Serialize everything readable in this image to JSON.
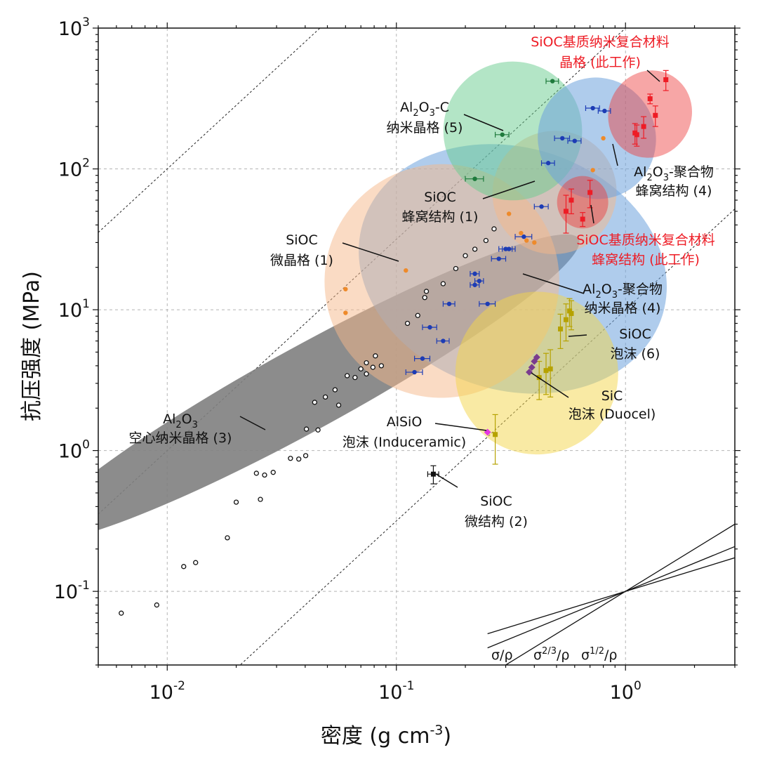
{
  "chart_data": {
    "type": "scatter",
    "xscale": "log",
    "yscale": "log",
    "xlabel": "密度 (g cm",
    "xlabel_sup": "-3",
    "xlabel_tail": ")",
    "ylabel": "抗压强度 (MPa)",
    "xlim": [
      0.005,
      3.0
    ],
    "ylim": [
      0.03,
      1000
    ],
    "grid": true,
    "x_ticks": [
      {
        "value": 0.01,
        "base": "10",
        "exp": "-2"
      },
      {
        "value": 0.1,
        "base": "10",
        "exp": "-1"
      },
      {
        "value": 1,
        "base": "10",
        "exp": "0"
      }
    ],
    "y_ticks": [
      {
        "value": 0.1,
        "base": "10",
        "exp": "-1"
      },
      {
        "value": 1,
        "base": "10",
        "exp": "0"
      },
      {
        "value": 10,
        "base": "10",
        "exp": "1"
      },
      {
        "value": 100,
        "base": "10",
        "exp": "2"
      },
      {
        "value": 1000,
        "base": "10",
        "exp": "3"
      }
    ],
    "guide_lines": [
      {
        "label": "σ/ρ",
        "exponent": 1
      },
      {
        "label_base": "σ",
        "label_sup": "2/3",
        "label_tail": "/ρ",
        "exponent": 0.6667
      },
      {
        "label_base": "σ",
        "label_sup": "1/2",
        "label_tail": "/ρ",
        "exponent": 0.5
      }
    ],
    "dashed_lines": {
      "slope": 1.5,
      "intercepts": [
        10,
        1000,
        100000,
        10000000,
        1000000000
      ]
    },
    "series": [
      {
        "name": "Al2O3 空心纳米晶格 (3)",
        "color": "#111111",
        "marker": "open-circle",
        "x": [
          0.0063,
          0.009,
          0.0118,
          0.0133,
          0.0183,
          0.02,
          0.0255,
          0.0245,
          0.0266,
          0.029,
          0.0345,
          0.0375,
          0.0402,
          0.0405,
          0.044,
          0.0455,
          0.049,
          0.054,
          0.056,
          0.061,
          0.066,
          0.07,
          0.074,
          0.074,
          0.079,
          0.081,
          0.086,
          0.1118,
          0.124,
          0.133,
          0.1352,
          0.16,
          0.1817,
          0.2,
          0.2201,
          0.246,
          0.2669
        ],
        "y": [
          0.07,
          0.08,
          0.15,
          0.16,
          0.24,
          0.43,
          0.45,
          0.69,
          0.67,
          0.7,
          0.88,
          0.87,
          0.92,
          1.42,
          2.2,
          1.4,
          2.4,
          2.7,
          2.1,
          3.4,
          3.3,
          3.8,
          3.5,
          4.2,
          3.9,
          4.7,
          4.0,
          8.0,
          9.1,
          12.2,
          13.5,
          15.3,
          19.6,
          24.2,
          26.9,
          31.0,
          37.5
        ]
      },
      {
        "name": "Al2O3-聚合物纳米晶格 (4)",
        "color": "#1d3cb5",
        "marker": "filled-circle",
        "x": [
          0.12,
          0.13,
          0.14,
          0.16,
          0.17,
          0.22,
          0.22,
          0.23,
          0.25,
          0.28,
          0.3,
          0.31,
          0.36,
          0.43,
          0.46,
          0.53,
          0.6,
          0.72,
          0.81
        ],
        "y": [
          3.6,
          4.5,
          7.5,
          6.0,
          11.0,
          15.0,
          18.0,
          16.0,
          11.0,
          23.0,
          27.0,
          27.0,
          33.0,
          54.0,
          110.0,
          165.0,
          158.0,
          270.0,
          258.0
        ],
        "xerr": [
          0.01,
          0.01,
          0.01,
          0.01,
          0.01,
          0.01,
          0.01,
          0.01,
          0.02,
          0.02,
          0.02,
          0.02,
          0.03,
          0.03,
          0.03,
          0.04,
          0.04,
          0.05,
          0.05
        ]
      },
      {
        "name": "SiOC 微晶格 (1)",
        "color": "#ee8a2a",
        "marker": "filled-circle",
        "x": [
          0.06,
          0.06,
          0.11,
          0.31,
          0.35,
          0.37,
          0.4,
          0.72,
          0.8
        ],
        "y": [
          14.0,
          9.5,
          19.0,
          48.0,
          35.0,
          31.0,
          30.0,
          98.0,
          165.0
        ]
      },
      {
        "name": "Al2O3-C 纳米晶格 (5)",
        "color": "#1e7a3c",
        "marker": "filled-circle",
        "x": [
          0.22,
          0.29,
          0.48
        ],
        "y": [
          85.0,
          175.0,
          420.0
        ],
        "xerr": [
          0.02,
          0.02,
          0.03
        ]
      },
      {
        "name": "SiOC基质纳米复合材料",
        "color": "#ee1c25",
        "marker": "filled-square",
        "x": [
          0.55,
          0.58,
          0.65,
          0.7,
          1.1,
          1.12,
          1.2,
          1.28,
          1.35,
          1.5
        ],
        "y": [
          50.0,
          60.0,
          44.0,
          68.0,
          180.0,
          175.0,
          200.0,
          315.0,
          240.0,
          430.0
        ],
        "yerr": [
          15.0,
          12.0,
          5.0,
          15.0,
          30.0,
          30.0,
          35.0,
          25.0,
          40.0,
          70.0
        ]
      },
      {
        "name": "SiOC 泡沫 (6)",
        "color": "#b6a200",
        "marker": "filled-square",
        "x": [
          0.27,
          0.42,
          0.45,
          0.47,
          0.52,
          0.55,
          0.57,
          0.58
        ],
        "y": [
          1.3,
          3.3,
          3.7,
          3.8,
          7.3,
          8.5,
          9.8,
          9.4
        ],
        "yerr": [
          0.5,
          1.0,
          1.2,
          1.4,
          2.0,
          2.5,
          2.2,
          2.2
        ]
      },
      {
        "name": "SiC 泡沫 (Duocel)",
        "color": "#7a3c8e",
        "marker": "filled-diamond",
        "x": [
          0.38,
          0.39,
          0.4,
          0.41
        ],
        "y": [
          3.6,
          3.9,
          4.3,
          4.6
        ]
      },
      {
        "name": "AlSiO 泡沫 (Induceramic)",
        "color": "#e33ae0",
        "marker": "filled-diamond",
        "x": [
          0.25
        ],
        "y": [
          1.35
        ]
      },
      {
        "name": "SiOC 微结构 (2)",
        "color": "#111111",
        "marker": "filled-square",
        "x": [
          0.145
        ],
        "y": [
          0.68
        ],
        "yerr": [
          0.1
        ],
        "xerr": [
          0.008
        ]
      }
    ],
    "ellipses": [
      {
        "name": "gray",
        "color": "#7f7f7f",
        "opacity": 0.9,
        "c": [
          0.041,
          2.8
        ],
        "u": [
          0.00565,
          0.057
        ],
        "v": [
          0.0335,
          5.1
        ]
      },
      {
        "name": "blue",
        "color": "#6ea3dc",
        "opacity": 0.55,
        "c": [
          0.322,
          19.5
        ],
        "u": [
          0.1,
          3.5
        ],
        "v": [
          0.46,
          130
        ]
      },
      {
        "name": "orange-micro",
        "color": "#f5b889",
        "opacity": 0.5,
        "c": [
          0.158,
          16.0
        ],
        "u": [
          0.053,
          8.0
        ],
        "v": [
          0.475,
          32.0
        ]
      },
      {
        "name": "orange-honey",
        "color": "#f5b889",
        "opacity": 0.5,
        "c": [
          0.49,
          68.0
        ],
        "u": [
          0.29,
          40.0
        ],
        "v": [
          0.83,
          118.0
        ]
      },
      {
        "name": "green",
        "color": "#67cc8e",
        "opacity": 0.5,
        "c": [
          0.322,
          186.0
        ],
        "u": [
          0.212,
          75.0
        ],
        "v": [
          0.49,
          460.0
        ]
      },
      {
        "name": "yellow",
        "color": "#f3d54a",
        "opacity": 0.5,
        "c": [
          0.41,
          3.55
        ],
        "u": [
          0.265,
          1.15
        ],
        "v": [
          0.63,
          11.0
        ]
      },
      {
        "name": "blue-honey",
        "color": "#6ea3dc",
        "opacity": 0.55,
        "c": [
          0.75,
          165.0
        ],
        "u": [
          0.42,
          120.0
        ],
        "v": [
          1.32,
          220.0
        ]
      },
      {
        "name": "red-lattice",
        "color": "#ee3a3a",
        "opacity": 0.45,
        "c": [
          1.28,
          245.0
        ],
        "u": [
          1.05,
          135.0
        ],
        "v": [
          1.55,
          470.0
        ]
      },
      {
        "name": "red-honey",
        "color": "#ee3a3a",
        "opacity": 0.45,
        "c": [
          0.65,
          58.0
        ],
        "u": [
          0.5,
          56.0
        ],
        "v": [
          0.84,
          60.0
        ]
      }
    ],
    "annotations": [
      {
        "lines": [
          "SiOC基质纳米复合材料",
          "晶格 (此工作)"
        ],
        "color": "red"
      },
      {
        "lines": [
          "Al2O3-C",
          "纳米晶格 (5)"
        ],
        "color": "black"
      },
      {
        "lines": [
          "Al2O3-聚合物",
          "蜂窝结构 (4)"
        ],
        "color": "black"
      },
      {
        "lines": [
          "SiOC",
          "蜂窝结构 (1)"
        ],
        "color": "black"
      },
      {
        "lines": [
          "SiOC",
          "微晶格 (1)"
        ],
        "color": "black"
      },
      {
        "lines": [
          "SiOC基质纳米复合材料",
          "蜂窝结构 (此工作)"
        ],
        "color": "red"
      },
      {
        "lines": [
          "Al2O3-聚合物",
          "纳米晶格 (4)"
        ],
        "color": "black"
      },
      {
        "lines": [
          "SiOC",
          "泡沫 (6)"
        ],
        "color": "black"
      },
      {
        "lines": [
          "SiC",
          "泡沫 (Duocel)"
        ],
        "color": "black"
      },
      {
        "lines": [
          "AlSiO",
          "泡沫 (Induceramic)"
        ],
        "color": "black"
      },
      {
        "lines": [
          "Al2O3",
          "空心纳米晶格 (3)"
        ],
        "color": "black"
      },
      {
        "lines": [
          "SiOC",
          "微结构 (2)"
        ],
        "color": "black"
      }
    ]
  }
}
